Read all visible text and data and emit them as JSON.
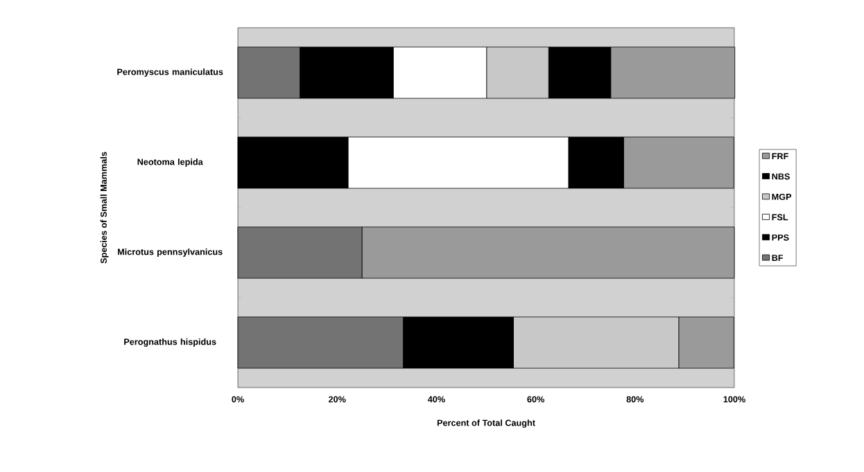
{
  "chart_data": {
    "type": "bar",
    "orientation": "horizontal",
    "stacked": true,
    "xlabel": "Percent of Total Caught",
    "ylabel": "Species of Small Mammals",
    "categories": [
      "Peromyscus maniculatus",
      "Neotoma lepida",
      "Microtus pennsylvanicus",
      "Perognathus hispidus"
    ],
    "series": [
      {
        "name": "BF",
        "color": "#737373",
        "values": [
          12.5,
          0,
          25,
          33.3
        ]
      },
      {
        "name": "PPS",
        "color": "#000000",
        "values": [
          18.8,
          22.2,
          0,
          22.2
        ]
      },
      {
        "name": "FSL",
        "color": "#ffffff",
        "values": [
          18.8,
          44.4,
          0,
          0
        ]
      },
      {
        "name": "MGP",
        "color": "#c8c8c8",
        "values": [
          12.5,
          0,
          0,
          33.3
        ]
      },
      {
        "name": "NBS",
        "color": "#000000",
        "values": [
          12.5,
          11.1,
          0,
          0
        ]
      },
      {
        "name": "FRF",
        "color": "#9a9a9a",
        "values": [
          25,
          22.2,
          75,
          11.1
        ]
      }
    ],
    "xlim": [
      0,
      100
    ],
    "xticks": [
      {
        "value": 0,
        "label": "0%"
      },
      {
        "value": 20,
        "label": "20%"
      },
      {
        "value": 40,
        "label": "40%"
      },
      {
        "value": 60,
        "label": "60%"
      },
      {
        "value": 80,
        "label": "80%"
      },
      {
        "value": 100,
        "label": "100%"
      }
    ],
    "legend": "right",
    "grid": false
  }
}
